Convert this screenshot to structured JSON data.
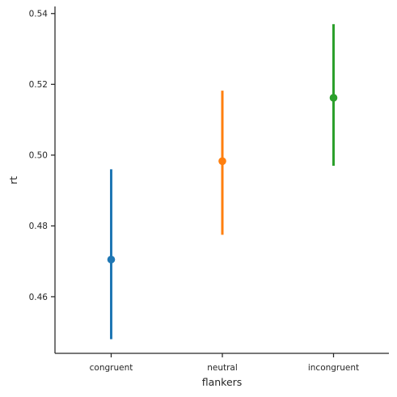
{
  "chart_data": {
    "type": "scatter",
    "title": "",
    "xlabel": "flankers",
    "ylabel": "rt",
    "categories": [
      "congruent",
      "neutral",
      "incongruent"
    ],
    "series": [
      {
        "values": [
          0.4705,
          0.4983,
          0.5162
        ],
        "ci_low": [
          0.448,
          0.4775,
          0.497
        ],
        "ci_high": [
          0.496,
          0.5182,
          0.537
        ]
      }
    ],
    "colors": [
      "#1f77b4",
      "#ff7f0e",
      "#2ca02c"
    ],
    "ylim": [
      0.444,
      0.542
    ],
    "yticks": [
      0.46,
      0.48,
      0.5,
      0.52,
      0.54
    ],
    "ytick_labels": [
      "0.46",
      "0.48",
      "0.50",
      "0.52",
      "0.54"
    ],
    "grid": false,
    "legend": "none"
  }
}
